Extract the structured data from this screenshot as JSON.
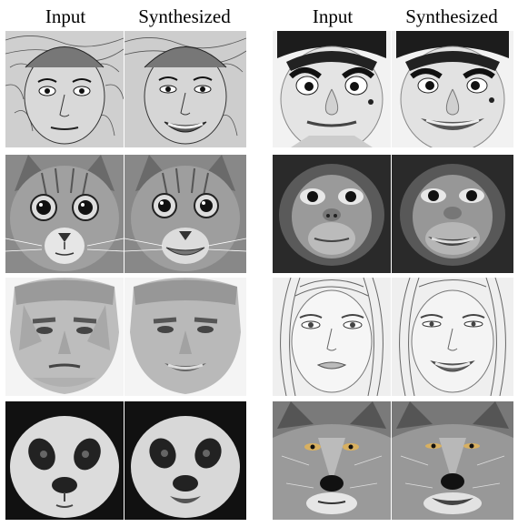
{
  "left_panel": {
    "headers": [
      "Input",
      "Synthesized"
    ],
    "rows": [
      {
        "subject": "sketched-man",
        "input": "neutral",
        "synthesized": "smiling"
      },
      {
        "subject": "cat",
        "input": "neutral",
        "synthesized": "smiling"
      },
      {
        "subject": "painted-man",
        "input": "neutral",
        "synthesized": "smiling"
      },
      {
        "subject": "panda",
        "input": "neutral",
        "synthesized": "smiling"
      }
    ]
  },
  "right_panel": {
    "headers": [
      "Input",
      "Synthesized"
    ],
    "rows": [
      {
        "subject": "caricature-man",
        "input": "neutral",
        "synthesized": "smiling"
      },
      {
        "subject": "monkey",
        "input": "neutral",
        "synthesized": "smiling"
      },
      {
        "subject": "sketched-woman",
        "input": "neutral",
        "synthesized": "smiling"
      },
      {
        "subject": "wolf",
        "input": "neutral",
        "synthesized": "smiling"
      }
    ]
  }
}
